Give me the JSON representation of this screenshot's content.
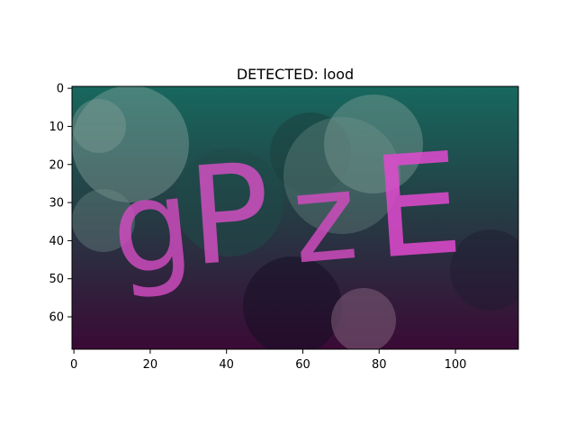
{
  "figure": {
    "title": "DETECTED: lood",
    "image_text": "gPzE",
    "x_ticks": [
      "0",
      "20",
      "40",
      "60",
      "80",
      "100"
    ],
    "y_ticks": [
      "0",
      "10",
      "20",
      "30",
      "40",
      "50",
      "60"
    ],
    "x_tick_values": [
      0,
      20,
      40,
      60,
      80,
      100
    ],
    "y_tick_values": [
      0,
      10,
      20,
      30,
      40,
      50,
      60
    ],
    "image_width": 117,
    "image_height": 69
  },
  "colors": {
    "bg_top": "#17685e",
    "bg_mid": "#243f45",
    "bg_bottom": "#3a0a36",
    "letters": "#d24cc1",
    "letters_bright": "#e24ad0",
    "circles": "#8aa8a0"
  }
}
